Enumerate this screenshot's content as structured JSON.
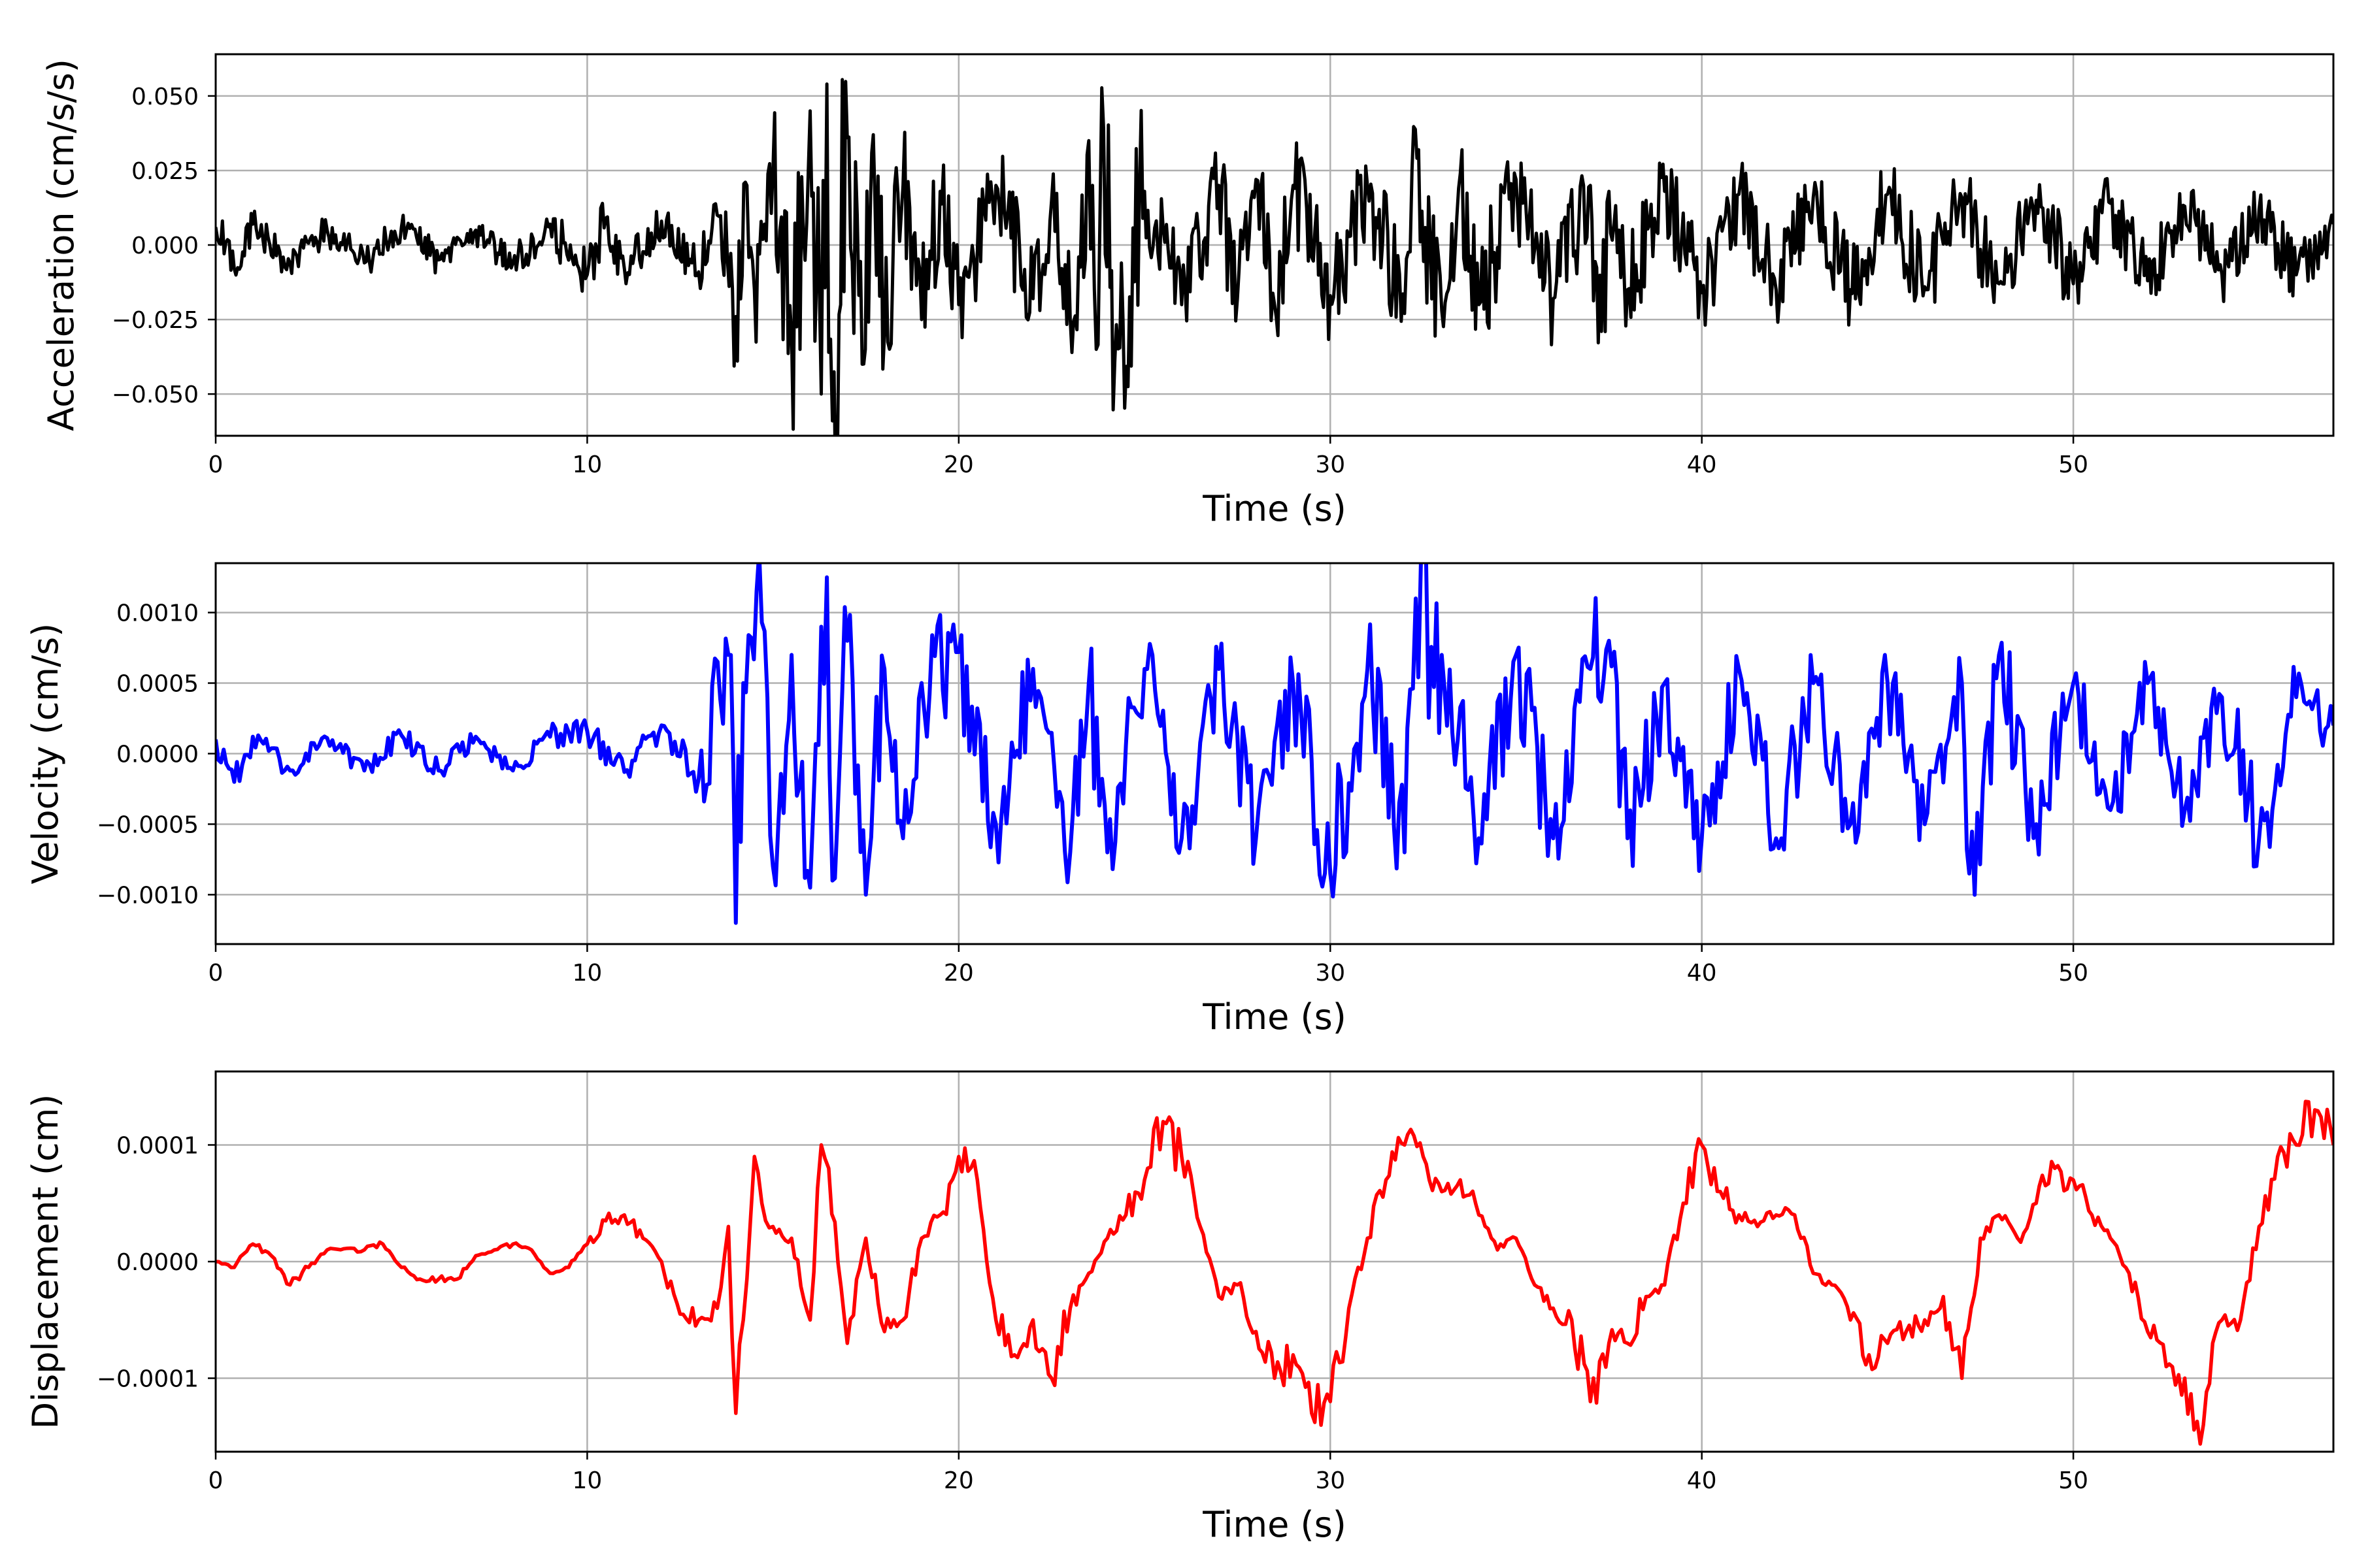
{
  "chart_data": [
    {
      "type": "line",
      "xlabel": "Time (s)",
      "ylabel": "Acceleration (cm/s/s)",
      "xlim": [
        0,
        57
      ],
      "ylim": [
        -0.064,
        0.064
      ],
      "xticks": [
        0,
        10,
        20,
        30,
        40,
        50
      ],
      "xtick_labels": [
        "0",
        "10",
        "20",
        "30",
        "40",
        "50"
      ],
      "yticks": [
        -0.05,
        -0.025,
        0.0,
        0.025,
        0.05
      ],
      "ytick_labels": [
        "−0.050",
        "−0.025",
        "0.000",
        "0.025",
        "0.050"
      ],
      "grid": true,
      "series": [
        {
          "color": "#000000",
          "x": [
            0,
            0.5,
            1,
            2,
            3,
            4,
            5,
            6,
            7,
            8,
            9,
            10,
            10.5,
            11,
            12,
            13,
            13.5,
            14,
            14.3,
            14.5,
            15,
            15.5,
            16,
            16.3,
            16.45,
            16.6,
            17,
            17.4,
            17.7,
            18,
            18.5,
            19,
            19.5,
            20,
            21,
            22,
            22.5,
            23,
            23.5,
            23.7,
            23.9,
            24.2,
            25,
            26,
            27,
            27.5,
            28,
            28.5,
            29,
            30,
            31,
            32,
            32.2,
            33,
            33.5,
            34,
            35,
            36,
            37,
            37.3,
            37.5,
            38,
            39,
            40,
            41,
            42,
            43,
            44,
            45,
            46,
            47,
            48,
            49,
            50,
            51,
            52,
            53,
            54,
            55,
            56,
            57
          ],
          "y": [
            0.006,
            -0.008,
            0.007,
            -0.006,
            0.005,
            -0.006,
            0.006,
            -0.005,
            0.005,
            -0.006,
            0.007,
            -0.01,
            0.009,
            -0.008,
            0.008,
            -0.009,
            0.01,
            -0.024,
            0.02,
            -0.015,
            0.025,
            -0.03,
            0.045,
            -0.05,
            0.054,
            -0.059,
            0.036,
            -0.04,
            0.037,
            -0.03,
            0.02,
            -0.025,
            0.018,
            -0.02,
            0.02,
            -0.018,
            0.015,
            -0.025,
            0.035,
            -0.035,
            0.039,
            -0.039,
            0.018,
            -0.02,
            0.02,
            -0.018,
            0.022,
            -0.02,
            0.02,
            -0.017,
            0.02,
            -0.023,
            0.025,
            -0.022,
            0.024,
            -0.02,
            0.022,
            -0.018,
            0.02,
            -0.029,
            0.018,
            -0.015,
            0.018,
            -0.016,
            0.017,
            -0.015,
            0.016,
            -0.015,
            0.017,
            -0.014,
            0.016,
            -0.013,
            0.015,
            -0.013,
            0.014,
            -0.012,
            0.013,
            -0.01,
            0.012,
            -0.01,
            0.007
          ]
        }
      ]
    },
    {
      "type": "line",
      "xlabel": "Time (s)",
      "ylabel": "Velocity (cm/s)",
      "xlim": [
        0,
        57
      ],
      "ylim": [
        -0.00135,
        0.00135
      ],
      "xticks": [
        0,
        10,
        20,
        30,
        40,
        50
      ],
      "xtick_labels": [
        "0",
        "10",
        "20",
        "30",
        "40",
        "50"
      ],
      "yticks": [
        -0.001,
        -0.0005,
        0.0,
        0.0005,
        0.001
      ],
      "ytick_labels": [
        "−0.0010",
        "−0.0005",
        "0.0000",
        "0.0005",
        "0.0010"
      ],
      "grid": true,
      "series": [
        {
          "color": "#0000ff",
          "x": [
            0,
            0.5,
            1,
            2,
            3,
            4,
            5,
            6,
            7,
            8,
            9,
            10,
            11,
            12,
            13,
            13.8,
            14,
            14.2,
            14.7,
            15,
            15.5,
            16,
            16.3,
            16.45,
            16.6,
            17,
            17.5,
            18,
            18.5,
            19,
            20,
            21,
            22,
            23,
            23.5,
            24,
            25,
            26,
            27,
            28,
            29,
            30,
            31,
            32,
            32.3,
            33,
            34,
            35,
            36,
            37,
            37.5,
            38,
            39,
            40,
            41,
            42,
            43,
            44,
            45,
            46,
            47,
            47.2,
            48,
            49,
            50,
            51,
            52,
            53,
            54,
            55,
            56,
            57
          ],
          "y": [
            0.0001,
            -0.0002,
            0.00012,
            -0.00012,
            0.00011,
            -0.00012,
            0.00013,
            -0.00012,
            0.00012,
            -0.00012,
            0.00012,
            0.00016,
            -0.00013,
            0.0002,
            -0.00018,
            0.0007,
            -0.0012,
            0.0005,
            0.00093,
            -0.0008,
            0.0007,
            -0.00095,
            0.0009,
            0.00125,
            -0.0009,
            0.0008,
            -0.001,
            0.0006,
            -0.0006,
            0.0005,
            0.00072,
            -0.0005,
            0.0006,
            -0.0007,
            0.0005,
            -0.0007,
            0.0006,
            -0.0006,
            0.0006,
            -0.0006,
            0.0005,
            -0.00085,
            0.0006,
            -0.0007,
            0.0011,
            0.0007,
            -0.0006,
            0.0007,
            -0.0006,
            0.0006,
            0.0008,
            -0.0006,
            0.0005,
            -0.0006,
            0.0006,
            -0.0006,
            0.0005,
            -0.0005,
            0.0005,
            -0.0005,
            0.0005,
            -0.00085,
            0.0007,
            -0.0005,
            0.0005,
            -0.0004,
            0.0005,
            -0.0004,
            0.0004,
            -0.0006,
            0.0004,
            0.0002
          ]
        }
      ]
    },
    {
      "type": "line",
      "xlabel": "Time (s)",
      "ylabel": "Displacement (cm)",
      "xlim": [
        0,
        57
      ],
      "ylim": [
        -0.000163,
        0.000163
      ],
      "xticks": [
        0,
        10,
        20,
        30,
        40,
        50
      ],
      "xtick_labels": [
        "0",
        "10",
        "20",
        "30",
        "40",
        "50"
      ],
      "yticks": [
        -0.0001,
        0.0,
        0.0001
      ],
      "ytick_labels": [
        "−0.0001",
        "0.0000",
        "0.0001"
      ],
      "grid": true,
      "series": [
        {
          "color": "#ff0000",
          "x": [
            0,
            0.5,
            1,
            1.5,
            2,
            2.5,
            3,
            4,
            4.5,
            5,
            5.5,
            6,
            6.5,
            7,
            7.5,
            8,
            8.5,
            9,
            9.5,
            10,
            10.5,
            11,
            11.5,
            12,
            12.5,
            13,
            13.5,
            13.8,
            14,
            14.2,
            14.5,
            14.7,
            15,
            15.5,
            16,
            16.3,
            16.5,
            17,
            17.5,
            18,
            18.5,
            19,
            19.5,
            20,
            20.5,
            21,
            21.5,
            22,
            22.5,
            23,
            23.5,
            24,
            24.5,
            25,
            25.5,
            26,
            26.5,
            27,
            27.5,
            28,
            28.5,
            29,
            29.5,
            30,
            30.5,
            31,
            31.5,
            32,
            32.5,
            33,
            33.5,
            34,
            34.5,
            35,
            35.5,
            36,
            36.5,
            37,
            37.5,
            38,
            38.5,
            39,
            39.5,
            40,
            40.5,
            41,
            41.5,
            42,
            42.5,
            43,
            43.5,
            44,
            44.5,
            45,
            45.5,
            46,
            46.5,
            47,
            47.5,
            48,
            48.5,
            49,
            49.5,
            50,
            50.5,
            51,
            51.5,
            52,
            52.5,
            53,
            53.5,
            54,
            54.5,
            55,
            55.5,
            56,
            56.5,
            57
          ],
          "y": [
            0.0,
            -5e-06,
            1.5e-05,
            5e-06,
            -2e-05,
            -5e-06,
            1e-05,
            1e-05,
            1.5e-05,
            -5e-06,
            -1.5e-05,
            -1.5e-05,
            -1.5e-05,
            5e-06,
            1e-05,
            1.5e-05,
            1e-05,
            -1e-05,
            -5e-06,
            1.5e-05,
            3.5e-05,
            4e-05,
            2e-05,
            0.0,
            -4.5e-05,
            -5e-05,
            -4e-05,
            3e-05,
            -0.00013,
            -5e-05,
            9e-05,
            5e-05,
            3e-05,
            2e-05,
            -5e-05,
            0.0001,
            8e-05,
            -7e-05,
            2e-05,
            -6e-05,
            -5e-05,
            2e-05,
            4e-05,
            9e-05,
            7e-05,
            -5e-05,
            -8e-05,
            -5e-05,
            -0.0001,
            -4e-05,
            -1e-05,
            2e-05,
            4e-05,
            7e-05,
            0.00012,
            9e-05,
            3e-05,
            -3e-05,
            -2e-05,
            -6e-05,
            -0.0001,
            -8e-05,
            -0.00013,
            -0.00012,
            -4e-05,
            2e-05,
            7e-05,
            0.0001,
            9e-05,
            6e-05,
            7e-05,
            4e-05,
            1e-05,
            2e-05,
            -2e-05,
            -4e-05,
            -5e-05,
            -0.00012,
            -7e-05,
            -7e-05,
            -3e-05,
            -2e-05,
            5e-05,
            0.0001,
            6e-05,
            4e-05,
            3e-05,
            4e-05,
            4e-05,
            -1e-05,
            -2e-05,
            -5e-05,
            -8e-05,
            -7e-05,
            -6e-05,
            -5e-05,
            -3e-05,
            -0.0001,
            2e-05,
            4e-05,
            2e-05,
            5e-05,
            8e-05,
            7e-05,
            4e-05,
            2e-05,
            -1e-05,
            -6e-05,
            -9e-05,
            -0.0001,
            -0.00014,
            -5e-05,
            -5e-05,
            3e-05,
            9e-05,
            0.0001,
            0.00013,
            0.0001
          ]
        }
      ]
    }
  ]
}
